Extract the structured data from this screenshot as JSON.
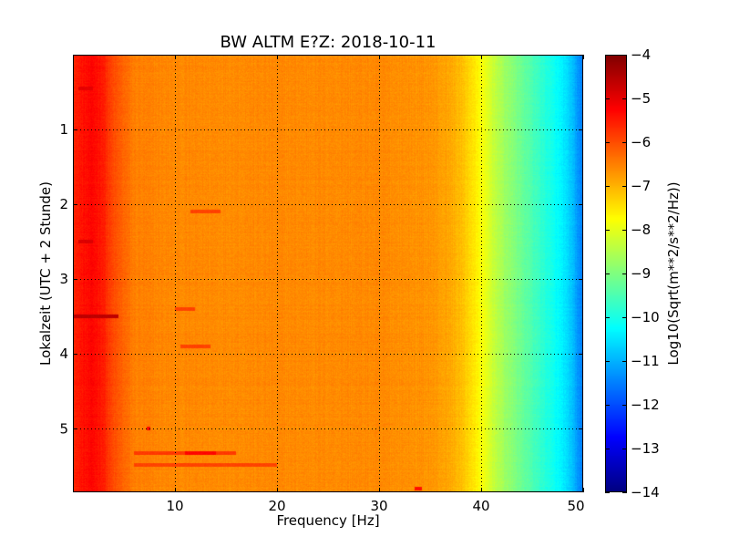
{
  "chart_data": {
    "type": "heatmap",
    "title": "BW ALTM E?Z: 2018-10-11",
    "xlabel": "Frequency [Hz]",
    "ylabel": "Lokalzeit (UTC + 2 Stunde)",
    "xlim": [
      0,
      50
    ],
    "ylim": [
      0,
      5.85
    ],
    "y_inverted": true,
    "grid": true,
    "x_ticks": [
      10,
      20,
      30,
      40,
      50
    ],
    "x_tick_labels": [
      "10",
      "20",
      "30",
      "40",
      "50"
    ],
    "y_ticks": [
      1,
      2,
      3,
      4,
      5
    ],
    "y_tick_labels": [
      "1",
      "2",
      "3",
      "4",
      "5"
    ],
    "colormap": "jet",
    "colorbar": {
      "label": "Log10(Sqrt(m**2/s**2/Hz))",
      "range": [
        -14,
        -4
      ],
      "ticks": [
        -4,
        -5,
        -6,
        -7,
        -8,
        -9,
        -10,
        -11,
        -12,
        -13,
        -14
      ],
      "tick_labels": [
        "−4",
        "−5",
        "−6",
        "−7",
        "−8",
        "−9",
        "−10",
        "−11",
        "−12",
        "−13",
        "−14"
      ]
    },
    "spectral_profile": {
      "frequency_hz": [
        0,
        1,
        2,
        3,
        3.5,
        4,
        6,
        10,
        20,
        30,
        35,
        37,
        38,
        39,
        40,
        41,
        42,
        44,
        46,
        47,
        48,
        49,
        49.5,
        50
      ],
      "log10_amplitude": [
        -5.6,
        -5.4,
        -5.3,
        -5.5,
        -5.8,
        -6.0,
        -6.5,
        -6.6,
        -6.6,
        -6.6,
        -6.7,
        -6.9,
        -7.1,
        -7.4,
        -7.8,
        -8.2,
        -8.6,
        -9.2,
        -9.8,
        -10.1,
        -10.4,
        -10.9,
        -11.3,
        -11.6
      ]
    },
    "time_events": [
      {
        "time": 0.45,
        "fmin": 0.5,
        "fmax": 2.0,
        "level": -5.0
      },
      {
        "time": 2.1,
        "fmin": 11.5,
        "fmax": 14.5,
        "level": -5.9
      },
      {
        "time": 2.5,
        "fmin": 0.5,
        "fmax": 2.0,
        "level": -4.9
      },
      {
        "time": 3.5,
        "fmin": 0,
        "fmax": 4.5,
        "level": -4.6
      },
      {
        "time": 3.4,
        "fmin": 10,
        "fmax": 12,
        "level": -5.9
      },
      {
        "time": 3.9,
        "fmin": 10.5,
        "fmax": 13.5,
        "level": -5.9
      },
      {
        "time": 5.33,
        "fmin": 6,
        "fmax": 16,
        "level": -5.8
      },
      {
        "time": 5.33,
        "fmin": 11,
        "fmax": 14,
        "level": -5.3
      },
      {
        "time": 5.48,
        "fmin": 6,
        "fmax": 20,
        "level": -5.9
      },
      {
        "time": 5.0,
        "fmin": 7.2,
        "fmax": 7.6,
        "level": -5.3
      },
      {
        "time": 5.8,
        "fmin": 33.5,
        "fmax": 34.2,
        "level": -5.4
      }
    ]
  }
}
